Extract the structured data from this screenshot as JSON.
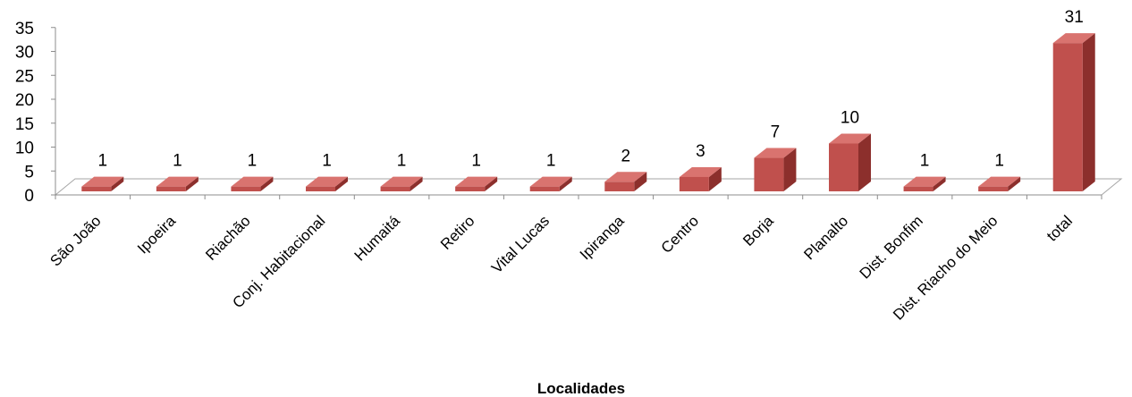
{
  "chart_data": {
    "type": "bar",
    "style": "3d-column",
    "categories": [
      "São João",
      "Ipoeira",
      "Riachão",
      "Conj. Habitacional",
      "Humaitá",
      "Retiro",
      "Vital Lucas",
      "Ipiranga",
      "Centro",
      "Borja",
      "Planalto",
      "Dist. Bonfim",
      "Dist. Riacho do Meio",
      "total"
    ],
    "values": [
      1,
      1,
      1,
      1,
      1,
      1,
      1,
      2,
      3,
      7,
      10,
      1,
      1,
      31
    ],
    "data_labels": [
      "1",
      "1",
      "1",
      "1",
      "1",
      "1",
      "1",
      "2",
      "3",
      "7",
      "10",
      "1",
      "1",
      "31"
    ],
    "yticks": [
      "0",
      "5",
      "10",
      "15",
      "20",
      "25",
      "30",
      "35"
    ],
    "ylim": [
      0,
      35
    ],
    "xlabel": "Localidades",
    "ylabel": "",
    "grid": false,
    "legend": "none",
    "colors": {
      "bar_front": "#c0504d",
      "bar_side": "#8c2f2c",
      "bar_top": "#d9736f",
      "floor_edge": "#a6a6a6",
      "axis": "#8c8c8c"
    }
  }
}
